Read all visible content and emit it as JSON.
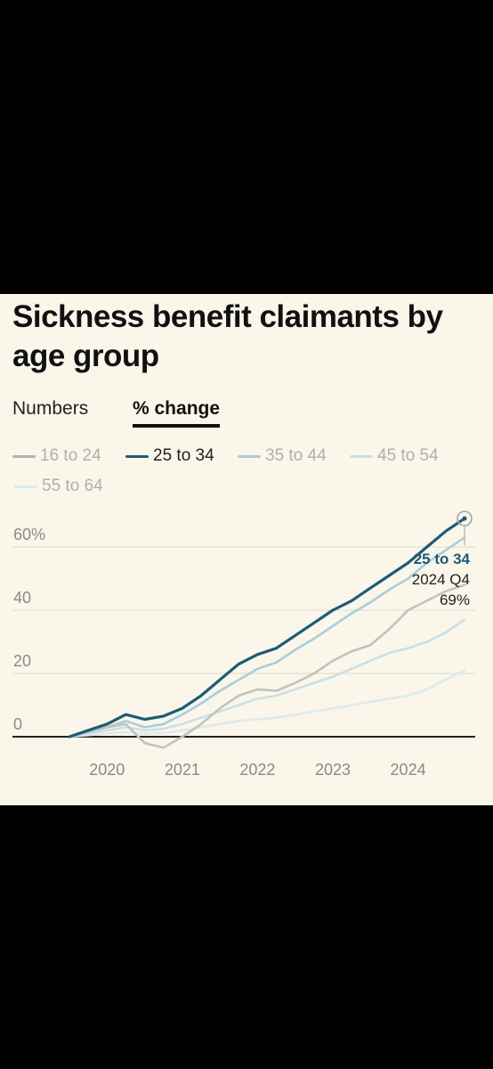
{
  "header": {
    "title": "Sickness benefit claimants by age group"
  },
  "tabs": [
    {
      "label": "Numbers",
      "active": false
    },
    {
      "label": "% change",
      "active": true
    }
  ],
  "colors": {
    "background": "#faf6ea",
    "s16_24": "#c2c2bc",
    "s25_34": "#1d5b77",
    "s35_44": "#a9cdd9",
    "s45_54": "#c9e0e8",
    "s55_64": "#dcebed",
    "grid": "#e7e3d7"
  },
  "chart_data": {
    "type": "line",
    "x": [
      "2019 Q3",
      "2019 Q4",
      "2020 Q1",
      "2020 Q2",
      "2020 Q3",
      "2020 Q4",
      "2021 Q1",
      "2021 Q2",
      "2021 Q3",
      "2021 Q4",
      "2022 Q1",
      "2022 Q2",
      "2022 Q3",
      "2022 Q4",
      "2023 Q1",
      "2023 Q2",
      "2023 Q3",
      "2023 Q4",
      "2024 Q1",
      "2024 Q2",
      "2024 Q3",
      "2024 Q4"
    ],
    "x_ticks": [
      "2020",
      "2021",
      "2022",
      "2023",
      "2024"
    ],
    "y_ticks": [
      "60%",
      "40",
      "20",
      "0"
    ],
    "y_tick_values": [
      60,
      40,
      20,
      0
    ],
    "ylim": [
      0,
      70
    ],
    "series": [
      {
        "name": "16 to 24",
        "color_key": "s16_24",
        "values": [
          0,
          1.5,
          3,
          4,
          -2,
          -3.5,
          0,
          4,
          9,
          13,
          15,
          14.5,
          17,
          20,
          24,
          27,
          29,
          34,
          40,
          43,
          46,
          48
        ]
      },
      {
        "name": "25 to 34",
        "color_key": "s25_34",
        "values": [
          0,
          2,
          4,
          7,
          5.5,
          6.5,
          9,
          13,
          18,
          23,
          26,
          28,
          32,
          36,
          40,
          43,
          47,
          51,
          55,
          60,
          65,
          69
        ]
      },
      {
        "name": "35 to 44",
        "color_key": "s35_44",
        "values": [
          0,
          1.5,
          3,
          5,
          3,
          4,
          7,
          10.5,
          14.5,
          18,
          21.5,
          23.5,
          27.5,
          31,
          35,
          39,
          42.5,
          46.5,
          50,
          55,
          59,
          63
        ]
      },
      {
        "name": "45 to 54",
        "color_key": "s45_54",
        "values": [
          0,
          1,
          2,
          3,
          2,
          2.5,
          4,
          6,
          8,
          10,
          12,
          13,
          15,
          17,
          19,
          21.5,
          24,
          26.5,
          28,
          30,
          33,
          37
        ]
      },
      {
        "name": "55 to 64",
        "color_key": "s55_64",
        "values": [
          0,
          0.5,
          1,
          1.5,
          1,
          1.2,
          2,
          3,
          4,
          5,
          5.5,
          6,
          7,
          8,
          9,
          10,
          11,
          12,
          13,
          15,
          18,
          21
        ]
      }
    ],
    "highlight": {
      "series": "25 to 34",
      "label": "25 to 34",
      "period": "2024 Q4",
      "value": "69%"
    },
    "legend_placement": "top",
    "grid": true
  }
}
